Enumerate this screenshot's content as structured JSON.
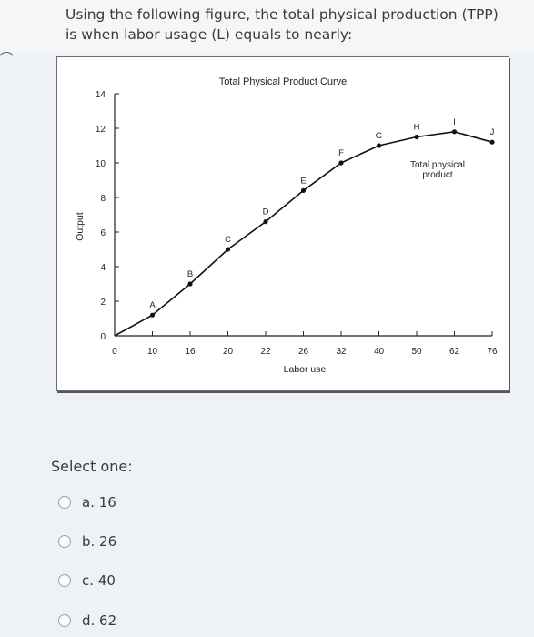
{
  "question": {
    "text": "Using the following figure, the total physical production (TPP) is when labor usage (L) equals to nearly:"
  },
  "chart_data": {
    "type": "line",
    "title": "Total Physical Product Curve",
    "xlabel": "Labor use",
    "ylabel": "Output",
    "x_tick_labels": [
      "0",
      "10",
      "16",
      "20",
      "22",
      "26",
      "32",
      "40",
      "50",
      "62",
      "76"
    ],
    "y_tick_labels": [
      "0",
      "2",
      "4",
      "6",
      "8",
      "10",
      "12",
      "14"
    ],
    "ylim": [
      0,
      14
    ],
    "series": [
      {
        "name": "Total physical product",
        "points": [
          {
            "label": "",
            "x": 0,
            "y": 0
          },
          {
            "label": "A",
            "x": 10,
            "y": 1.2
          },
          {
            "label": "B",
            "x": 16,
            "y": 3
          },
          {
            "label": "C",
            "x": 20,
            "y": 5
          },
          {
            "label": "D",
            "x": 22,
            "y": 6.6
          },
          {
            "label": "E",
            "x": 26,
            "y": 8.4
          },
          {
            "label": "F",
            "x": 32,
            "y": 10
          },
          {
            "label": "G",
            "x": 40,
            "y": 11
          },
          {
            "label": "H",
            "x": 50,
            "y": 11.5
          },
          {
            "label": "I",
            "x": 62,
            "y": 11.8
          },
          {
            "label": "J",
            "x": 76,
            "y": 11.2
          }
        ]
      }
    ],
    "legend": "right",
    "grid": false
  },
  "answer": {
    "prompt": "Select one:",
    "options": [
      {
        "letter": "a.",
        "value": "16"
      },
      {
        "letter": "b.",
        "value": "26"
      },
      {
        "letter": "c.",
        "value": "40"
      },
      {
        "letter": "d.",
        "value": "62"
      }
    ]
  },
  "icons": {
    "left_edge": "arc-glyph-icon"
  }
}
